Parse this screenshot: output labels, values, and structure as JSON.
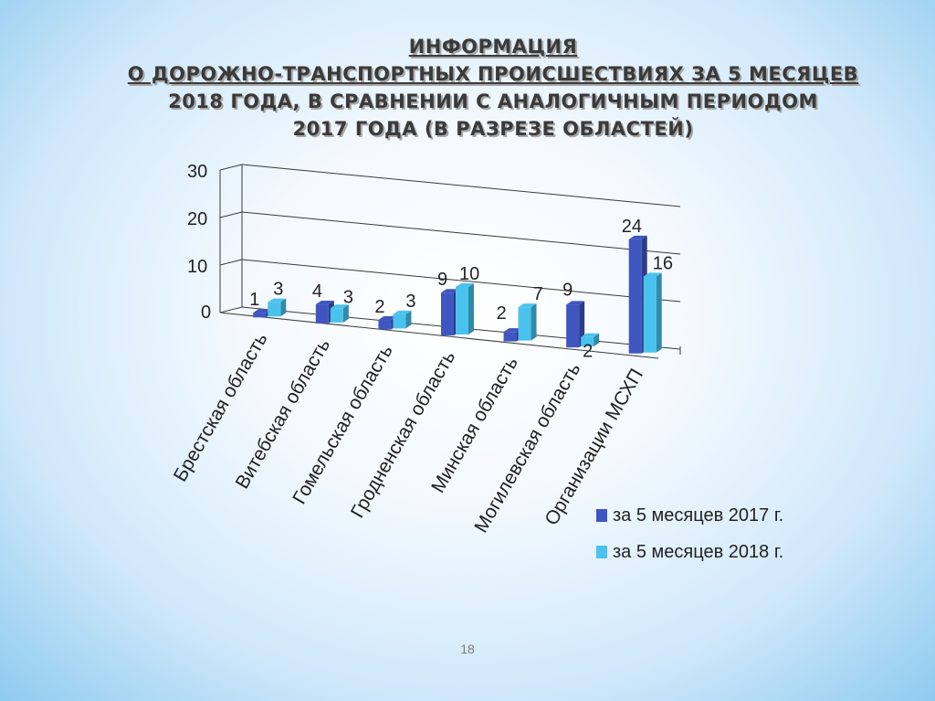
{
  "slide": {
    "title_line1": "ИНФОРМАЦИЯ",
    "title_line2": "О ДОРОЖНО-ТРАНСПОРТНЫХ ПРОИСШЕСТВИЯХ  ЗА 5 МЕСЯЦЕВ",
    "title_line3": "2018 ГОДА, В СРАВНЕНИИ С АНАЛОГИЧНЫМ ПЕРИОДОМ",
    "title_line4": "2017 ГОДА  (В РАЗРЕЗЕ ОБЛАСТЕЙ)",
    "page_number": "18"
  },
  "colors": {
    "series_2017": "#3f56c0",
    "series_2018": "#49c3ee"
  },
  "chart_data": {
    "type": "bar",
    "categories": [
      "Брестская область",
      "Витебская область",
      "Гомельская область",
      "Гродненская область",
      "Минская область",
      "Могилевская область",
      "Организации МСХП"
    ],
    "series": [
      {
        "name": "за 5 месяцев 2017 г.",
        "values": [
          1,
          4,
          2,
          9,
          2,
          9,
          24
        ]
      },
      {
        "name": "за 5 месяцев 2018 г.",
        "values": [
          3,
          3,
          3,
          10,
          7,
          2,
          16
        ]
      }
    ],
    "yticks": [
      "0",
      "10",
      "20",
      "30"
    ],
    "ylim": [
      0,
      30
    ],
    "legend_position": "bottom-right",
    "grid": true
  }
}
